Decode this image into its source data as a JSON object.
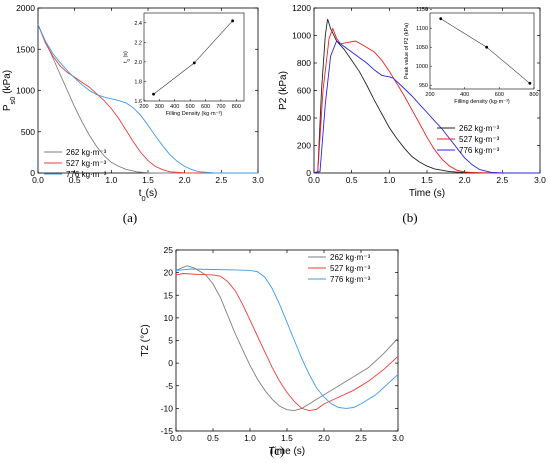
{
  "chart_data": [
    {
      "panel_label": "(a)",
      "type": "line",
      "xlabel": "t_0(s)",
      "ylabel": "P_s0 (kPa)",
      "xlim": [
        0,
        3.0
      ],
      "ylim": [
        0,
        2000
      ],
      "x_ticks": [
        "0.0",
        "0.5",
        "1.0",
        "1.5",
        "2.0",
        "2.5",
        "3.0"
      ],
      "y_ticks": [
        "0",
        "500",
        "1000",
        "1500",
        "2000"
      ],
      "series": [
        {
          "name": "262 kg·m⁻³",
          "color": "#7f7f7f",
          "points": [
            [
              0,
              1800
            ],
            [
              0.1,
              1600
            ],
            [
              0.2,
              1400
            ],
            [
              0.3,
              1200
            ],
            [
              0.4,
              1000
            ],
            [
              0.5,
              800
            ],
            [
              0.6,
              620
            ],
            [
              0.7,
              460
            ],
            [
              0.8,
              320
            ],
            [
              0.9,
              210
            ],
            [
              1.0,
              130
            ],
            [
              1.1,
              80
            ],
            [
              1.2,
              45
            ],
            [
              1.35,
              15
            ],
            [
              1.5,
              3
            ],
            [
              1.7,
              0
            ],
            [
              3.0,
              0
            ]
          ]
        },
        {
          "name": "527 kg·m⁻³",
          "color": "#ef3b3b",
          "points": [
            [
              0,
              1800
            ],
            [
              0.1,
              1580
            ],
            [
              0.2,
              1420
            ],
            [
              0.3,
              1300
            ],
            [
              0.4,
              1220
            ],
            [
              0.5,
              1160
            ],
            [
              0.6,
              1100
            ],
            [
              0.7,
              1040
            ],
            [
              0.8,
              960
            ],
            [
              0.9,
              880
            ],
            [
              1.0,
              780
            ],
            [
              1.1,
              660
            ],
            [
              1.2,
              520
            ],
            [
              1.3,
              380
            ],
            [
              1.4,
              250
            ],
            [
              1.5,
              150
            ],
            [
              1.6,
              80
            ],
            [
              1.7,
              40
            ],
            [
              1.8,
              15
            ],
            [
              2.0,
              2
            ],
            [
              2.2,
              0
            ],
            [
              3.0,
              0
            ]
          ]
        },
        {
          "name": "776 kg·m⁻³",
          "color": "#3d9be9",
          "points": [
            [
              0,
              1800
            ],
            [
              0.1,
              1600
            ],
            [
              0.2,
              1450
            ],
            [
              0.3,
              1340
            ],
            [
              0.4,
              1240
            ],
            [
              0.5,
              1150
            ],
            [
              0.6,
              1070
            ],
            [
              0.7,
              1000
            ],
            [
              0.8,
              950
            ],
            [
              0.9,
              920
            ],
            [
              1.0,
              900
            ],
            [
              1.1,
              880
            ],
            [
              1.2,
              850
            ],
            [
              1.3,
              790
            ],
            [
              1.4,
              700
            ],
            [
              1.5,
              580
            ],
            [
              1.6,
              450
            ],
            [
              1.7,
              330
            ],
            [
              1.8,
              220
            ],
            [
              1.9,
              140
            ],
            [
              2.0,
              80
            ],
            [
              2.1,
              40
            ],
            [
              2.2,
              15
            ],
            [
              2.4,
              3
            ],
            [
              2.6,
              0
            ],
            [
              3.0,
              0
            ]
          ]
        }
      ],
      "inset": {
        "xlabel": "Filling Density (kg·m⁻³)",
        "ylabel": "t_0 (s)",
        "xlim": [
          200,
          850
        ],
        "ylim": [
          1.6,
          2.5
        ],
        "x_ticks": [
          "200",
          "300",
          "400",
          "500",
          "600",
          "700",
          "800"
        ],
        "y_ticks": [
          "1.6",
          "1.8",
          "2.0",
          "2.2",
          "2.4"
        ],
        "points": [
          [
            262,
            1.67
          ],
          [
            527,
            1.99
          ],
          [
            776,
            2.42
          ]
        ]
      }
    },
    {
      "panel_label": "(b)",
      "type": "line",
      "xlabel": "Time (s)",
      "ylabel": "P2 (kPa)",
      "xlim": [
        0,
        3.0
      ],
      "ylim": [
        0,
        1200
      ],
      "x_ticks": [
        "0.0",
        "0.5",
        "1.0",
        "1.5",
        "2.0",
        "2.5",
        "3.0"
      ],
      "y_ticks": [
        "0",
        "200",
        "400",
        "600",
        "800",
        "1000",
        "1200"
      ],
      "series": [
        {
          "name": "262 kg·m⁻³",
          "color": "#222222",
          "points": [
            [
              0,
              0
            ],
            [
              0.05,
              10
            ],
            [
              0.1,
              600
            ],
            [
              0.15,
              1000
            ],
            [
              0.18,
              1120
            ],
            [
              0.22,
              1050
            ],
            [
              0.3,
              960
            ],
            [
              0.4,
              900
            ],
            [
              0.5,
              820
            ],
            [
              0.6,
              740
            ],
            [
              0.7,
              640
            ],
            [
              0.8,
              530
            ],
            [
              0.9,
              430
            ],
            [
              1.0,
              330
            ],
            [
              1.1,
              250
            ],
            [
              1.2,
              180
            ],
            [
              1.3,
              120
            ],
            [
              1.4,
              80
            ],
            [
              1.5,
              50
            ],
            [
              1.6,
              30
            ],
            [
              1.8,
              10
            ],
            [
              2.0,
              3
            ],
            [
              2.5,
              0
            ],
            [
              3.0,
              0
            ]
          ]
        },
        {
          "name": "527 kg·m⁻³",
          "color": "#ef2020",
          "points": [
            [
              0,
              0
            ],
            [
              0.05,
              10
            ],
            [
              0.12,
              600
            ],
            [
              0.2,
              980
            ],
            [
              0.25,
              1050
            ],
            [
              0.3,
              980
            ],
            [
              0.35,
              940
            ],
            [
              0.45,
              950
            ],
            [
              0.55,
              960
            ],
            [
              0.65,
              930
            ],
            [
              0.8,
              880
            ],
            [
              0.9,
              820
            ],
            [
              1.0,
              740
            ],
            [
              1.1,
              650
            ],
            [
              1.2,
              560
            ],
            [
              1.3,
              460
            ],
            [
              1.4,
              360
            ],
            [
              1.5,
              260
            ],
            [
              1.6,
              170
            ],
            [
              1.7,
              100
            ],
            [
              1.8,
              50
            ],
            [
              1.9,
              20
            ],
            [
              2.0,
              8
            ],
            [
              2.2,
              0
            ],
            [
              3.0,
              0
            ]
          ]
        },
        {
          "name": "776 kg·m⁻³",
          "color": "#2525e6",
          "points": [
            [
              0,
              0
            ],
            [
              0.08,
              10
            ],
            [
              0.15,
              500
            ],
            [
              0.22,
              850
            ],
            [
              0.3,
              960
            ],
            [
              0.4,
              920
            ],
            [
              0.5,
              880
            ],
            [
              0.6,
              840
            ],
            [
              0.7,
              800
            ],
            [
              0.8,
              750
            ],
            [
              0.9,
              710
            ],
            [
              1.0,
              700
            ],
            [
              1.05,
              690
            ],
            [
              1.15,
              640
            ],
            [
              1.3,
              560
            ],
            [
              1.4,
              500
            ],
            [
              1.5,
              440
            ],
            [
              1.6,
              380
            ],
            [
              1.7,
              320
            ],
            [
              1.8,
              250
            ],
            [
              1.9,
              180
            ],
            [
              2.0,
              110
            ],
            [
              2.1,
              60
            ],
            [
              2.2,
              25
            ],
            [
              2.35,
              5
            ],
            [
              2.5,
              0
            ],
            [
              3.0,
              0
            ]
          ]
        }
      ],
      "inset": {
        "xlabel": "Filling density (kg·m⁻³)",
        "ylabel": "Peak value of P2 (kPa)",
        "xlim": [
          200,
          800
        ],
        "ylim": [
          940,
          1140
        ],
        "x_ticks": [
          "200",
          "400",
          "600",
          "800"
        ],
        "y_ticks": [
          "950",
          "1000",
          "1050",
          "1100",
          "1150"
        ],
        "points": [
          [
            262,
            1125
          ],
          [
            527,
            1050
          ],
          [
            776,
            955
          ]
        ]
      }
    },
    {
      "panel_label": "(c)",
      "type": "line",
      "xlabel": "Time (s)",
      "ylabel": "T2 (°C)",
      "xlim": [
        0,
        3.0
      ],
      "ylim": [
        -15,
        25
      ],
      "x_ticks": [
        "0.0",
        "0.5",
        "1.0",
        "1.5",
        "2.0",
        "2.5",
        "3.0"
      ],
      "y_ticks": [
        "-15",
        "-10",
        "-5",
        "0",
        "5",
        "10",
        "15",
        "20",
        "25"
      ],
      "series": [
        {
          "name": "262 kg·m⁻³",
          "color": "#7f7f7f",
          "points": [
            [
              0,
              20.5
            ],
            [
              0.1,
              21.2
            ],
            [
              0.15,
              21.5
            ],
            [
              0.25,
              21.0
            ],
            [
              0.4,
              19.5
            ],
            [
              0.5,
              17.5
            ],
            [
              0.6,
              14.5
            ],
            [
              0.7,
              10.5
            ],
            [
              0.8,
              6.5
            ],
            [
              0.9,
              3.0
            ],
            [
              1.0,
              -0.5
            ],
            [
              1.1,
              -3.5
            ],
            [
              1.2,
              -6.0
            ],
            [
              1.3,
              -8.0
            ],
            [
              1.4,
              -9.5
            ],
            [
              1.5,
              -10.3
            ],
            [
              1.6,
              -10.5
            ],
            [
              1.7,
              -10.0
            ],
            [
              1.8,
              -9.0
            ],
            [
              2.0,
              -7.0
            ],
            [
              2.2,
              -5.0
            ],
            [
              2.4,
              -3.0
            ],
            [
              2.6,
              -1.0
            ],
            [
              2.8,
              2.0
            ],
            [
              3.0,
              5.5
            ]
          ]
        },
        {
          "name": "527 kg·m⁻³",
          "color": "#ef3b3b",
          "points": [
            [
              0,
              19.5
            ],
            [
              0.1,
              19.8
            ],
            [
              0.3,
              19.6
            ],
            [
              0.5,
              19.5
            ],
            [
              0.6,
              19.2
            ],
            [
              0.7,
              18.0
            ],
            [
              0.8,
              16.0
            ],
            [
              0.9,
              13.0
            ],
            [
              1.0,
              9.5
            ],
            [
              1.1,
              6.0
            ],
            [
              1.2,
              2.5
            ],
            [
              1.3,
              -1.0
            ],
            [
              1.4,
              -4.0
            ],
            [
              1.5,
              -6.5
            ],
            [
              1.6,
              -8.5
            ],
            [
              1.7,
              -10.0
            ],
            [
              1.8,
              -10.5
            ],
            [
              1.9,
              -10.2
            ],
            [
              2.0,
              -9.0
            ],
            [
              2.2,
              -7.5
            ],
            [
              2.4,
              -6.0
            ],
            [
              2.6,
              -4.0
            ],
            [
              2.8,
              -1.5
            ],
            [
              3.0,
              1.5
            ]
          ]
        },
        {
          "name": "776 kg·m⁻³",
          "color": "#3d9be9",
          "points": [
            [
              0,
              20.5
            ],
            [
              0.2,
              20.8
            ],
            [
              0.5,
              20.7
            ],
            [
              0.8,
              20.6
            ],
            [
              1.0,
              20.5
            ],
            [
              1.1,
              20.2
            ],
            [
              1.2,
              19.0
            ],
            [
              1.3,
              16.5
            ],
            [
              1.4,
              13.0
            ],
            [
              1.5,
              9.0
            ],
            [
              1.6,
              5.0
            ],
            [
              1.7,
              1.0
            ],
            [
              1.8,
              -2.5
            ],
            [
              1.9,
              -5.5
            ],
            [
              2.0,
              -7.5
            ],
            [
              2.1,
              -9.0
            ],
            [
              2.2,
              -9.8
            ],
            [
              2.3,
              -10.0
            ],
            [
              2.4,
              -9.8
            ],
            [
              2.5,
              -9.0
            ],
            [
              2.6,
              -8.0
            ],
            [
              2.7,
              -7.0
            ],
            [
              2.8,
              -5.5
            ],
            [
              2.9,
              -4.0
            ],
            [
              3.0,
              -2.5
            ]
          ]
        }
      ]
    }
  ]
}
